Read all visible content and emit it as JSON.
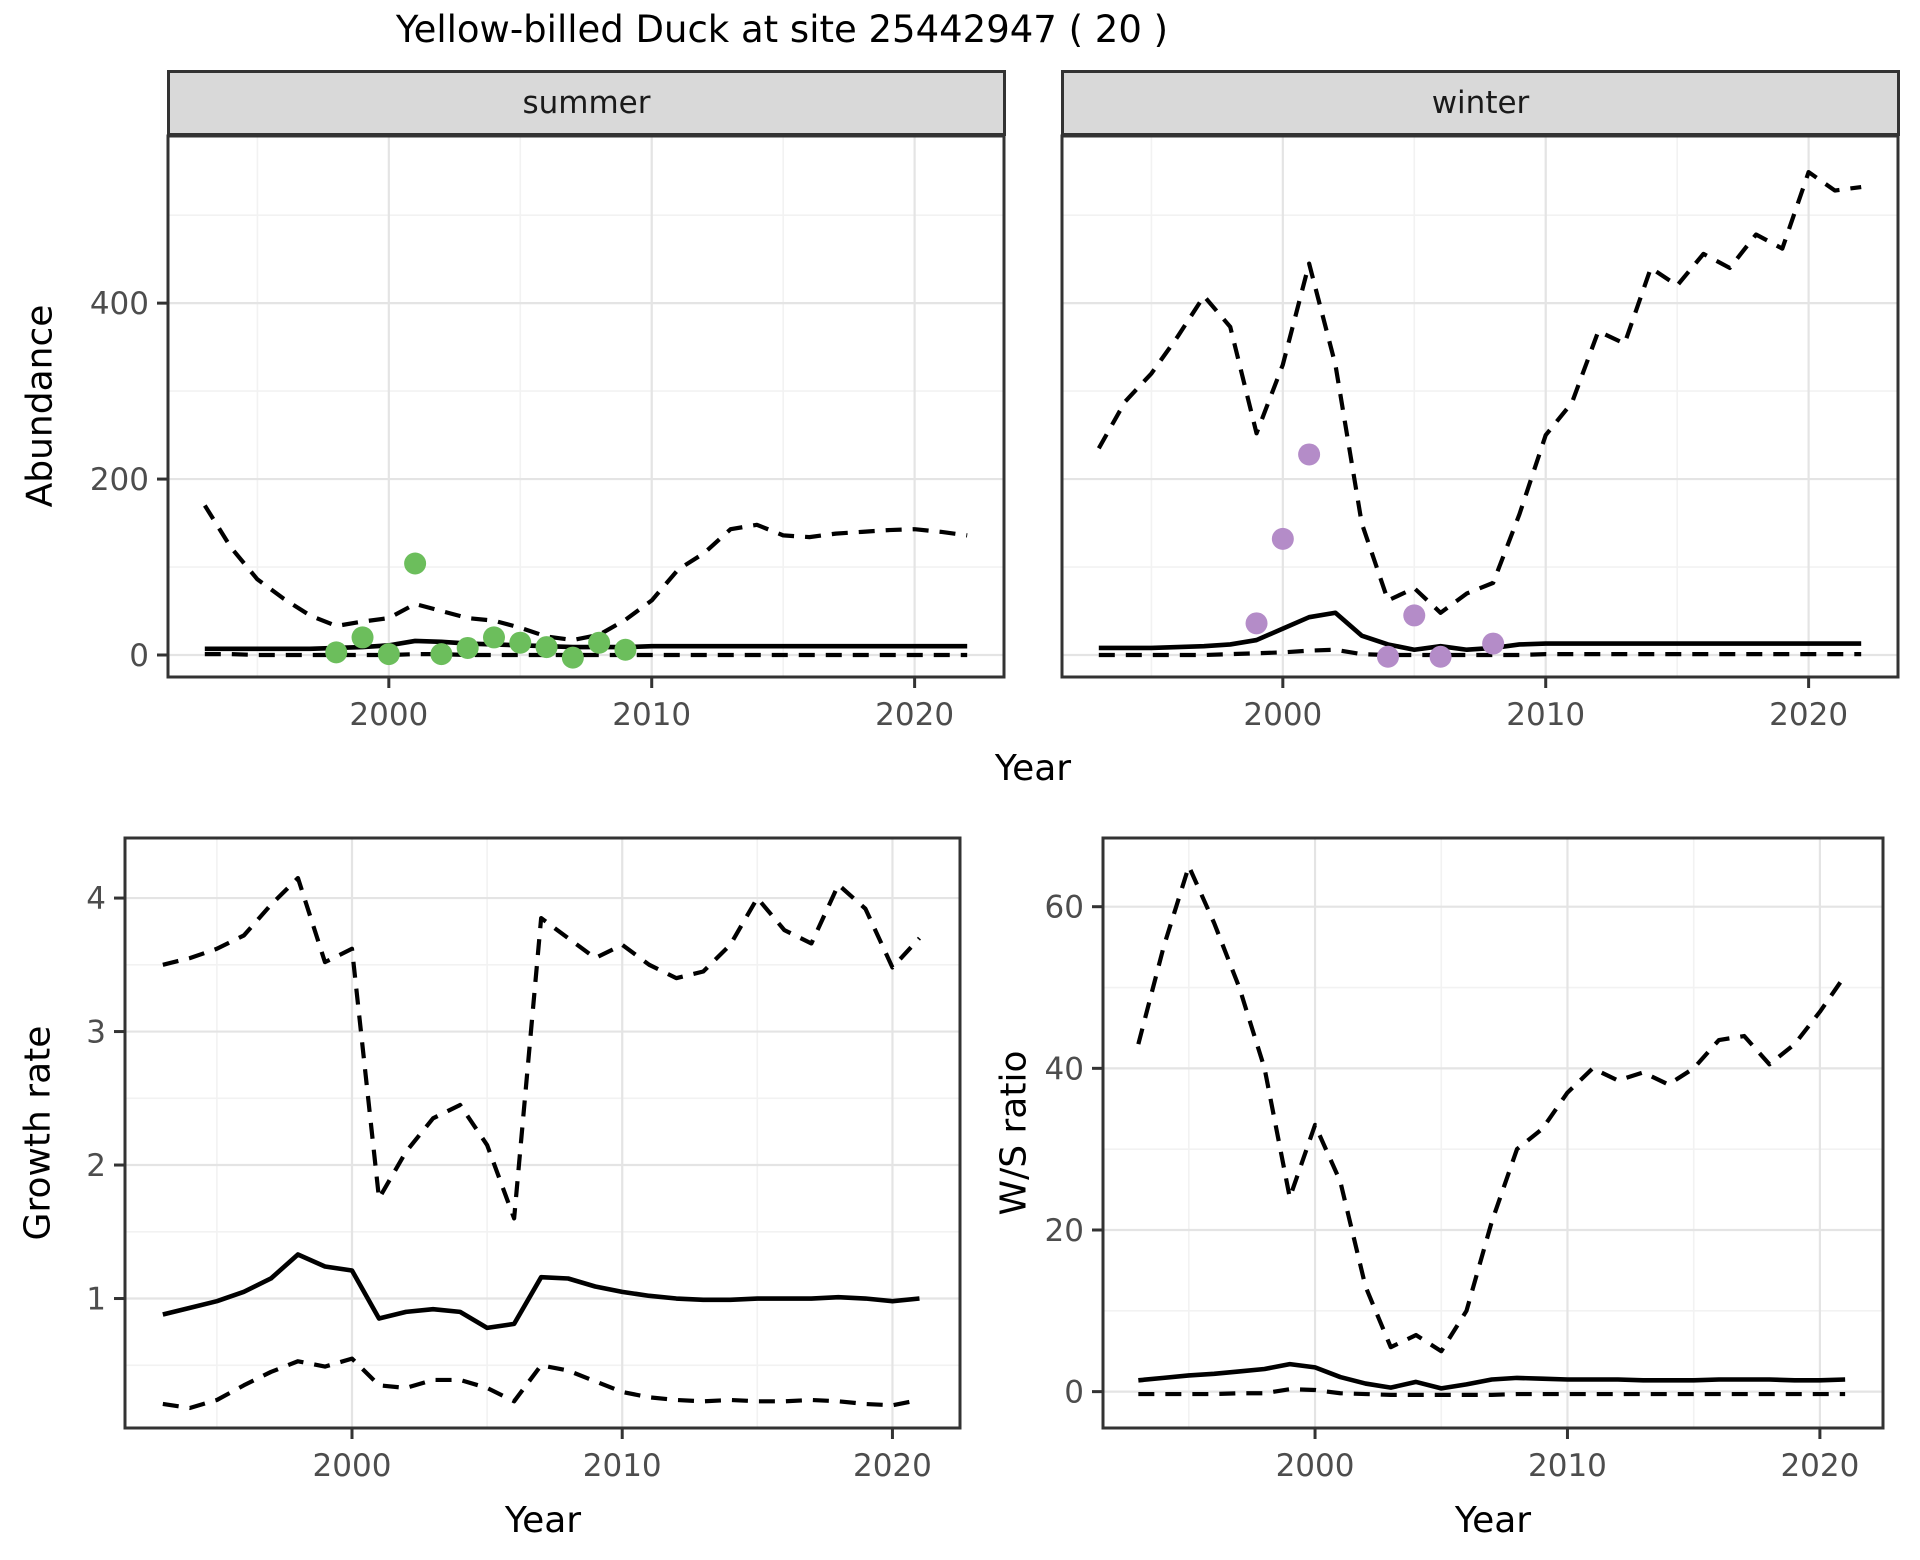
{
  "title": "Yellow-billed Duck at site 25442947 ( 20 )",
  "colors": {
    "summer_points": "#6cbe5c",
    "winter_points": "#b48cc8",
    "line": "#000000",
    "strip_bg": "#d9d9d9",
    "panel_border": "#333333",
    "grid_major": "#e4e4e4",
    "grid_minor": "#f2f2f2",
    "tick_text": "#4d4d4d"
  },
  "chart_data": [
    {
      "type": "line",
      "facet_label": "summer",
      "xlabel": "Year",
      "ylabel": "Abundance",
      "x": [
        1993,
        1994,
        1995,
        1996,
        1997,
        1998,
        1999,
        2000,
        2001,
        2002,
        2003,
        2004,
        2005,
        2006,
        2007,
        2008,
        2009,
        2010,
        2011,
        2012,
        2013,
        2014,
        2015,
        2016,
        2017,
        2018,
        2019,
        2020,
        2021,
        2022
      ],
      "series": [
        {
          "name": "median",
          "style": "solid",
          "values": [
            7,
            7,
            7,
            7,
            7,
            8,
            9,
            11,
            16,
            15,
            13,
            12,
            11,
            10,
            9,
            9,
            9,
            10,
            10,
            10,
            10,
            10,
            10,
            10,
            10,
            10,
            10,
            10,
            10,
            10
          ]
        },
        {
          "name": "upper-ci",
          "style": "dashed",
          "values": [
            170,
            122,
            86,
            64,
            45,
            33,
            38,
            42,
            58,
            50,
            42,
            39,
            31,
            21,
            17,
            23,
            40,
            62,
            97,
            116,
            143,
            148,
            136,
            134,
            138,
            140,
            142,
            143,
            140,
            136
          ]
        },
        {
          "name": "lower-ci",
          "style": "dashed",
          "values": [
            1,
            1,
            0,
            0,
            0,
            0,
            0,
            0,
            1,
            1,
            0,
            0,
            0,
            0,
            0,
            0,
            0,
            0,
            0,
            0,
            0,
            0,
            0,
            0,
            0,
            0,
            0,
            0,
            0,
            0
          ]
        }
      ],
      "points": {
        "name": "observed-counts",
        "color": "#6cbe5c",
        "x": [
          1998,
          1999,
          2000,
          2001,
          2002,
          2003,
          2004,
          2005,
          2006,
          2007,
          2008,
          2009
        ],
        "y": [
          3,
          20,
          1,
          104,
          1,
          8,
          20,
          14,
          9,
          -3,
          14,
          6
        ]
      },
      "xticks": [
        2000,
        2010,
        2020
      ],
      "xticks_minor": [
        1995,
        2005,
        2015
      ],
      "yticks": [
        0,
        200,
        400
      ],
      "yticks_minor": [
        100,
        300,
        500
      ],
      "xlim": [
        1991.6,
        2023.4
      ],
      "ylim": [
        -25,
        590
      ],
      "grid": true,
      "legend": false
    },
    {
      "type": "line",
      "facet_label": "winter",
      "xlabel": "Year",
      "ylabel": "Abundance",
      "x": [
        1993,
        1994,
        1995,
        1996,
        1997,
        1998,
        1999,
        2000,
        2001,
        2002,
        2003,
        2004,
        2005,
        2006,
        2007,
        2008,
        2009,
        2010,
        2011,
        2012,
        2013,
        2014,
        2015,
        2016,
        2017,
        2018,
        2019,
        2020,
        2021,
        2022
      ],
      "series": [
        {
          "name": "median",
          "style": "solid",
          "values": [
            8,
            8,
            8,
            9,
            10,
            12,
            17,
            30,
            43,
            48,
            22,
            12,
            6,
            10,
            6,
            8,
            12,
            13,
            13,
            13,
            13,
            13,
            13,
            13,
            13,
            13,
            13,
            13,
            13,
            13
          ]
        },
        {
          "name": "upper-ci",
          "style": "dashed",
          "values": [
            235,
            288,
            320,
            362,
            408,
            373,
            252,
            330,
            445,
            330,
            150,
            62,
            76,
            48,
            70,
            82,
            160,
            250,
            287,
            368,
            354,
            440,
            420,
            456,
            440,
            478,
            462,
            549,
            528,
            532
          ]
        },
        {
          "name": "lower-ci",
          "style": "dashed",
          "values": [
            0,
            0,
            0,
            0,
            0,
            1,
            2,
            3,
            5,
            6,
            1,
            0,
            0,
            0,
            0,
            0,
            0,
            1,
            1,
            1,
            1,
            1,
            1,
            1,
            1,
            1,
            1,
            1,
            1,
            1
          ]
        }
      ],
      "points": {
        "name": "observed-counts",
        "color": "#b48cc8",
        "x": [
          1999,
          2000,
          2001,
          2004,
          2005,
          2006,
          2008
        ],
        "y": [
          36,
          132,
          228,
          -2,
          45,
          -2,
          13
        ]
      },
      "xticks": [
        2000,
        2010,
        2020
      ],
      "xticks_minor": [
        1995,
        2005,
        2015
      ],
      "yticks": [
        0,
        200,
        400
      ],
      "yticks_minor": [
        100,
        300,
        500
      ],
      "xlim": [
        1991.6,
        2023.4
      ],
      "ylim": [
        -25,
        590
      ],
      "grid": true,
      "legend": false
    },
    {
      "type": "line",
      "facet_label": "",
      "xlabel": "Year",
      "ylabel": "Growth rate",
      "x": [
        1993,
        1994,
        1995,
        1996,
        1997,
        1998,
        1999,
        2000,
        2001,
        2002,
        2003,
        2004,
        2005,
        2006,
        2007,
        2008,
        2009,
        2010,
        2011,
        2012,
        2013,
        2014,
        2015,
        2016,
        2017,
        2018,
        2019,
        2020,
        2021
      ],
      "series": [
        {
          "name": "median",
          "style": "solid",
          "values": [
            0.88,
            0.93,
            0.98,
            1.05,
            1.15,
            1.33,
            1.24,
            1.21,
            0.85,
            0.9,
            0.92,
            0.9,
            0.78,
            0.81,
            1.16,
            1.15,
            1.09,
            1.05,
            1.02,
            1.0,
            0.99,
            0.99,
            1.0,
            1.0,
            1.0,
            1.01,
            1.0,
            0.98,
            1.0
          ]
        },
        {
          "name": "upper-ci",
          "style": "dashed",
          "values": [
            3.5,
            3.55,
            3.62,
            3.72,
            3.95,
            4.15,
            3.52,
            3.62,
            1.75,
            2.1,
            2.35,
            2.45,
            2.15,
            1.6,
            3.85,
            3.7,
            3.55,
            3.65,
            3.5,
            3.4,
            3.45,
            3.65,
            4.0,
            3.76,
            3.66,
            4.1,
            3.92,
            3.48,
            3.7
          ]
        },
        {
          "name": "lower-ci",
          "style": "dashed",
          "values": [
            0.21,
            0.18,
            0.24,
            0.35,
            0.45,
            0.53,
            0.49,
            0.55,
            0.35,
            0.33,
            0.39,
            0.39,
            0.33,
            0.23,
            0.5,
            0.46,
            0.38,
            0.3,
            0.26,
            0.24,
            0.23,
            0.24,
            0.23,
            0.23,
            0.24,
            0.23,
            0.21,
            0.2,
            0.24
          ]
        }
      ],
      "xticks": [
        2000,
        2010,
        2020
      ],
      "xticks_minor": [
        1995,
        2005,
        2015
      ],
      "yticks": [
        1,
        2,
        3,
        4
      ],
      "yticks_minor": [
        0.5,
        1.5,
        2.5,
        3.5
      ],
      "xlim": [
        1991.6,
        2022.5
      ],
      "ylim": [
        0.03,
        4.45
      ],
      "grid": true,
      "legend": false
    },
    {
      "type": "line",
      "facet_label": "",
      "xlabel": "Year",
      "ylabel": "W/S ratio",
      "x": [
        1993,
        1994,
        1995,
        1996,
        1997,
        1998,
        1999,
        2000,
        2001,
        2002,
        2003,
        2004,
        2005,
        2006,
        2007,
        2008,
        2009,
        2010,
        2011,
        2012,
        2013,
        2014,
        2015,
        2016,
        2017,
        2018,
        2019,
        2020,
        2021
      ],
      "series": [
        {
          "name": "median",
          "style": "solid",
          "values": [
            1.4,
            1.7,
            2.0,
            2.2,
            2.5,
            2.8,
            3.4,
            3.0,
            1.8,
            1.0,
            0.5,
            1.2,
            0.4,
            0.9,
            1.5,
            1.7,
            1.6,
            1.5,
            1.5,
            1.5,
            1.4,
            1.4,
            1.4,
            1.5,
            1.5,
            1.5,
            1.4,
            1.4,
            1.5
          ]
        },
        {
          "name": "upper-ci",
          "style": "dashed",
          "values": [
            43,
            55,
            65,
            58,
            50,
            40,
            24,
            33,
            26,
            13,
            5.5,
            7,
            5,
            10,
            21,
            30,
            32.5,
            37,
            40,
            38.5,
            39.5,
            38,
            40,
            43.5,
            44,
            40.5,
            43,
            47,
            51.5
          ]
        },
        {
          "name": "lower-ci",
          "style": "dashed",
          "values": [
            -0.3,
            -0.3,
            -0.3,
            -0.3,
            -0.2,
            -0.2,
            0.3,
            0.2,
            -0.2,
            -0.3,
            -0.4,
            -0.4,
            -0.4,
            -0.4,
            -0.4,
            -0.3,
            -0.3,
            -0.3,
            -0.3,
            -0.3,
            -0.3,
            -0.3,
            -0.3,
            -0.3,
            -0.3,
            -0.3,
            -0.3,
            -0.3,
            -0.3
          ]
        }
      ],
      "xticks": [
        2000,
        2010,
        2020
      ],
      "xticks_minor": [
        1995,
        2005,
        2015
      ],
      "yticks": [
        0,
        20,
        40,
        60
      ],
      "yticks_minor": [
        10,
        30,
        50
      ],
      "xlim": [
        1991.6,
        2022.5
      ],
      "ylim": [
        -4.5,
        68.5
      ],
      "grid": true,
      "legend": false
    }
  ]
}
